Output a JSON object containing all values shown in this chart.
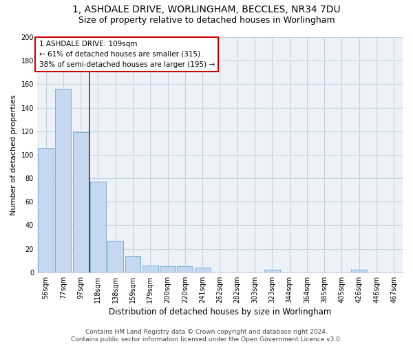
{
  "title1": "1, ASHDALE DRIVE, WORLINGHAM, BECCLES, NR34 7DU",
  "title2": "Size of property relative to detached houses in Worlingham",
  "xlabel": "Distribution of detached houses by size in Worlingham",
  "ylabel": "Number of detached properties",
  "categories": [
    "56sqm",
    "77sqm",
    "97sqm",
    "118sqm",
    "138sqm",
    "159sqm",
    "179sqm",
    "200sqm",
    "220sqm",
    "241sqm",
    "262sqm",
    "282sqm",
    "303sqm",
    "323sqm",
    "344sqm",
    "364sqm",
    "385sqm",
    "405sqm",
    "426sqm",
    "446sqm",
    "467sqm"
  ],
  "values": [
    106,
    156,
    119,
    77,
    27,
    14,
    6,
    5,
    5,
    4,
    0,
    0,
    0,
    2,
    0,
    0,
    0,
    0,
    2,
    0,
    0
  ],
  "bar_color": "#c5d8ef",
  "bar_edge_color": "#7aafd4",
  "vline_x": 2.5,
  "vline_color": "#cc0000",
  "annotation_text": "1 ASHDALE DRIVE: 109sqm\n← 61% of detached houses are smaller (315)\n38% of semi-detached houses are larger (195) →",
  "annotation_box_color": "#ffffff",
  "annotation_box_edge": "#cc0000",
  "ylim": [
    0,
    200
  ],
  "yticks": [
    0,
    20,
    40,
    60,
    80,
    100,
    120,
    140,
    160,
    180,
    200
  ],
  "grid_color": "#c8d0dc",
  "bg_color": "#edf2f9",
  "footer": "Contains HM Land Registry data © Crown copyright and database right 2024.\nContains public sector information licensed under the Open Government Licence v3.0.",
  "title1_fontsize": 10,
  "title2_fontsize": 9,
  "xlabel_fontsize": 8.5,
  "ylabel_fontsize": 8,
  "tick_fontsize": 7,
  "footer_fontsize": 6.5,
  "annotation_fontsize": 7.5
}
